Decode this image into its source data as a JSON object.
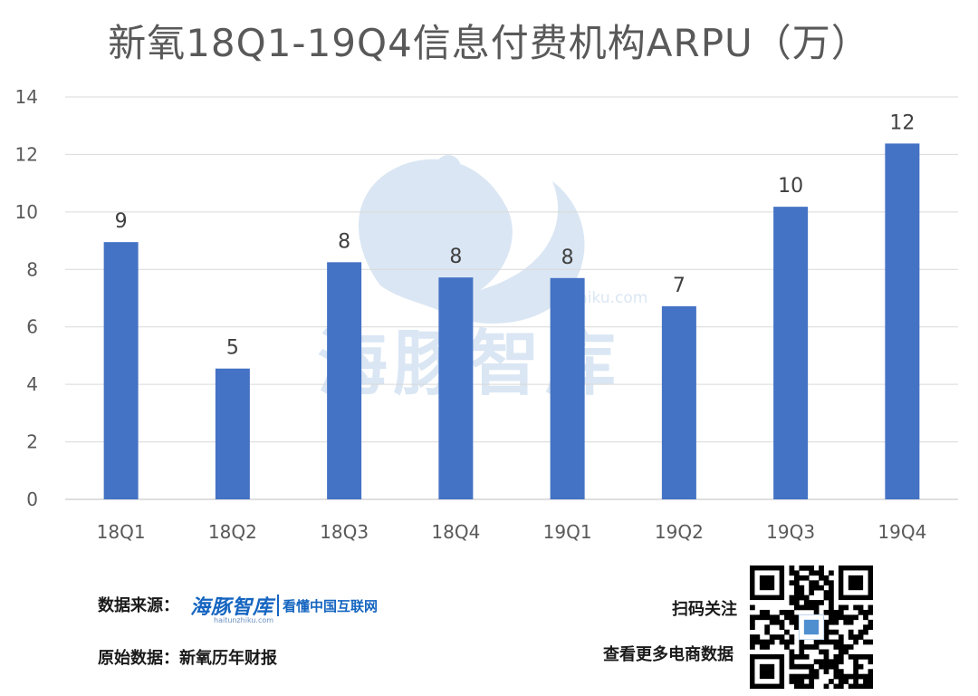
{
  "chart_data": {
    "type": "bar",
    "title": "新氧18Q1-19Q4信息付费机构ARPU（万）",
    "categories": [
      "18Q1",
      "18Q2",
      "18Q3",
      "18Q4",
      "19Q1",
      "19Q2",
      "19Q3",
      "19Q4"
    ],
    "values": [
      8.95,
      4.55,
      8.25,
      7.72,
      7.7,
      6.72,
      10.18,
      12.38
    ],
    "data_labels": [
      "9",
      "5",
      "8",
      "8",
      "8",
      "7",
      "10",
      "12"
    ],
    "ylim": [
      0,
      14
    ],
    "yticks": [
      "0",
      "2",
      "4",
      "6",
      "8",
      "10",
      "12",
      "14"
    ],
    "xlabel": "",
    "ylabel": "",
    "grid": true,
    "bar_color": "#4472c4"
  },
  "watermark": {
    "name": "海豚智库",
    "url": "haitunzhiku.com",
    "color": "#bcd3ea"
  },
  "footer": {
    "source_label": "数据来源：",
    "source_logo": "海豚智库",
    "source_slogan": "看懂中国互联网",
    "source_url": "haitunzhiku.com",
    "origin_label": "原始数据：新氧历年财报",
    "scan_label": "扫码关注",
    "more_label": "查看更多电商数据",
    "qr_icon": "qr-code-icon",
    "brand_color": "#1565c0"
  }
}
